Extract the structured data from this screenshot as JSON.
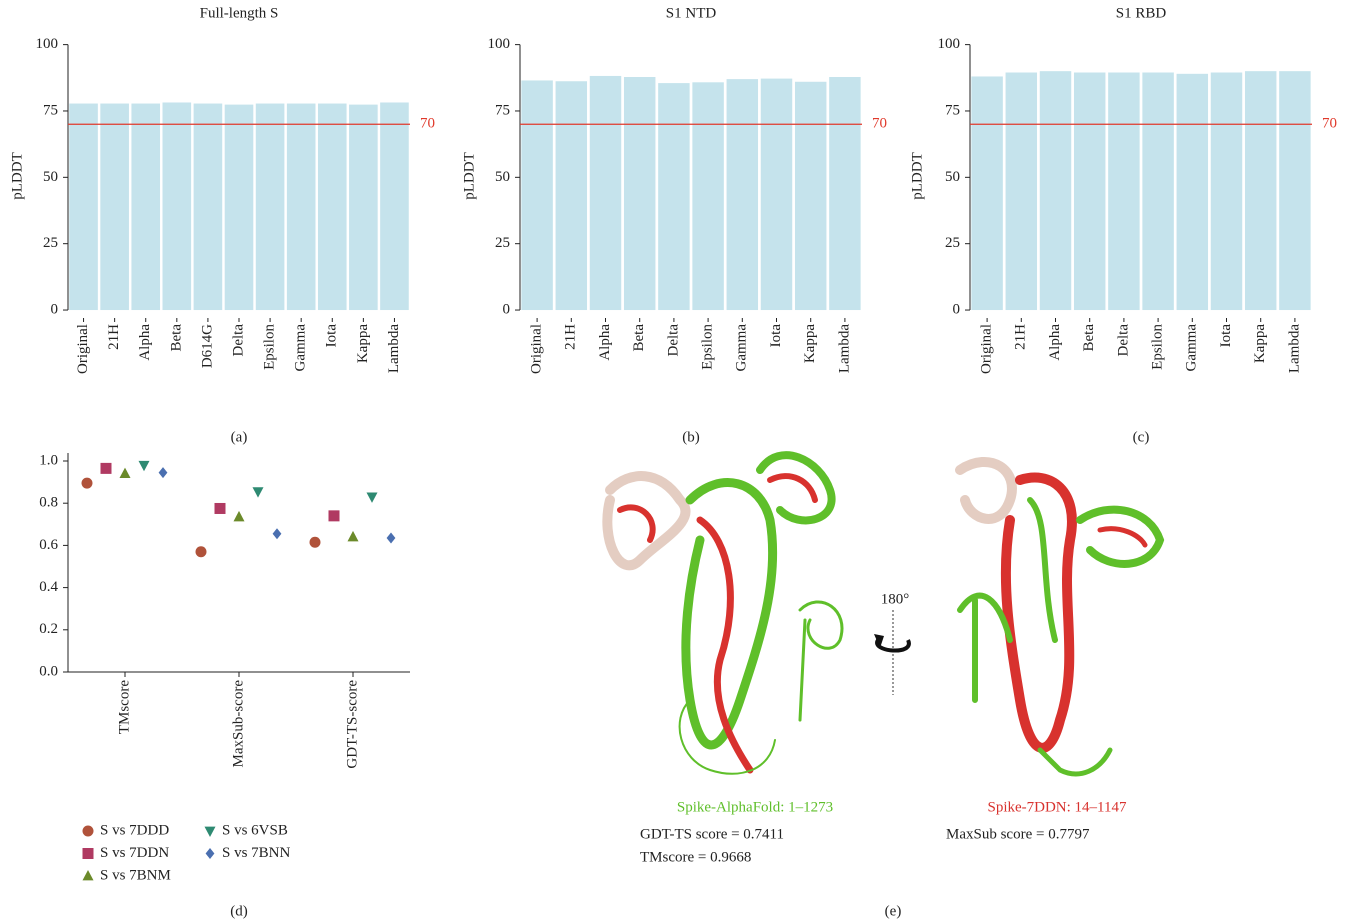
{
  "chart_data": [
    {
      "type": "bar",
      "title": "Full-length S",
      "caption": "(a)",
      "y_label": "pLDDT",
      "categories": [
        "Original",
        "21H",
        "Alpha",
        "Beta",
        "D614G",
        "Delta",
        "Epsilon",
        "Gamma",
        "Iota",
        "Kappa",
        "Lambda"
      ],
      "values": [
        77.8,
        77.8,
        77.8,
        78.2,
        77.8,
        77.4,
        77.8,
        77.8,
        77.8,
        77.4,
        78.2
      ],
      "color": "#c5e3ec",
      "ylim": [
        -3,
        104
      ],
      "yticks": [
        0,
        25,
        50,
        75,
        100
      ],
      "hline": 70,
      "hline_color": "#e0392b"
    },
    {
      "type": "bar",
      "title": "S1 NTD",
      "caption": "(b)",
      "y_label": "pLDDT",
      "categories": [
        "Original",
        "21H",
        "Alpha",
        "Beta",
        "Delta",
        "Epsilon",
        "Gamma",
        "Iota",
        "Kappa",
        "Lambda"
      ],
      "values": [
        86.5,
        86.2,
        88.2,
        87.8,
        85.5,
        85.8,
        87,
        87.2,
        86,
        87.8
      ],
      "color": "#c5e3ec",
      "ylim": [
        -3,
        104
      ],
      "yticks": [
        0,
        25,
        50,
        75,
        100
      ],
      "hline": 70,
      "hline_color": "#e0392b"
    },
    {
      "type": "bar",
      "title": "S1 RBD",
      "caption": "(c)",
      "y_label": "pLDDT",
      "categories": [
        "Original",
        "21H",
        "Alpha",
        "Beta",
        "Delta",
        "Epsilon",
        "Gamma",
        "Iota",
        "Kappa",
        "Lambda"
      ],
      "values": [
        88,
        89.5,
        90,
        89.5,
        89.5,
        89.5,
        89,
        89.5,
        90,
        90
      ],
      "color": "#c5e3ec",
      "ylim": [
        -3,
        104
      ],
      "yticks": [
        0,
        25,
        50,
        75,
        100
      ],
      "hline": 70,
      "hline_color": "#e0392b"
    },
    {
      "type": "dot",
      "caption": "(d)",
      "categories": [
        "TMscore",
        "MaxSub-score",
        "GDT-TS-score"
      ],
      "series": [
        {
          "name": "S vs 7DDD",
          "color": "#b0523a",
          "marker": "circle",
          "values": [
            0.895,
            0.57,
            0.615
          ]
        },
        {
          "name": "S vs 7DDN",
          "color": "#b03a62",
          "marker": "square",
          "values": [
            0.965,
            0.775,
            0.74
          ]
        },
        {
          "name": "S vs 7BNM",
          "color": "#6b8a2a",
          "marker": "triangle-up",
          "values": [
            0.94,
            0.735,
            0.64
          ]
        },
        {
          "name": "S vs 6VSB",
          "color": "#2e8a72",
          "marker": "triangle-down",
          "values": [
            0.98,
            0.855,
            0.83
          ]
        },
        {
          "name": "S vs 7BNN",
          "color": "#4a6fb0",
          "marker": "diamond",
          "values": [
            0.945,
            0.655,
            0.635
          ]
        }
      ],
      "ylim": [
        0,
        1
      ],
      "yticks": [
        {
          "value": 0,
          "label": "0.0"
        },
        {
          "value": 0.2,
          "label": "0.2"
        },
        {
          "value": 0.4,
          "label": "0.4"
        },
        {
          "value": 0.6,
          "label": "0.6"
        },
        {
          "value": 0.8,
          "label": "0.8"
        },
        {
          "value": 1,
          "label": "1.0"
        }
      ]
    }
  ],
  "structure_panel": {
    "caption": "(e)",
    "left_title": "Spike-AlphaFold: 1–1273",
    "left_lines": [
      "GDT-TS score = 0.7411",
      "TMscore = 0.9668"
    ],
    "right_title": "Spike-7DDN: 14–1147",
    "right_lines": [
      "MaxSub score = 0.7797"
    ],
    "rotation": "180°"
  }
}
